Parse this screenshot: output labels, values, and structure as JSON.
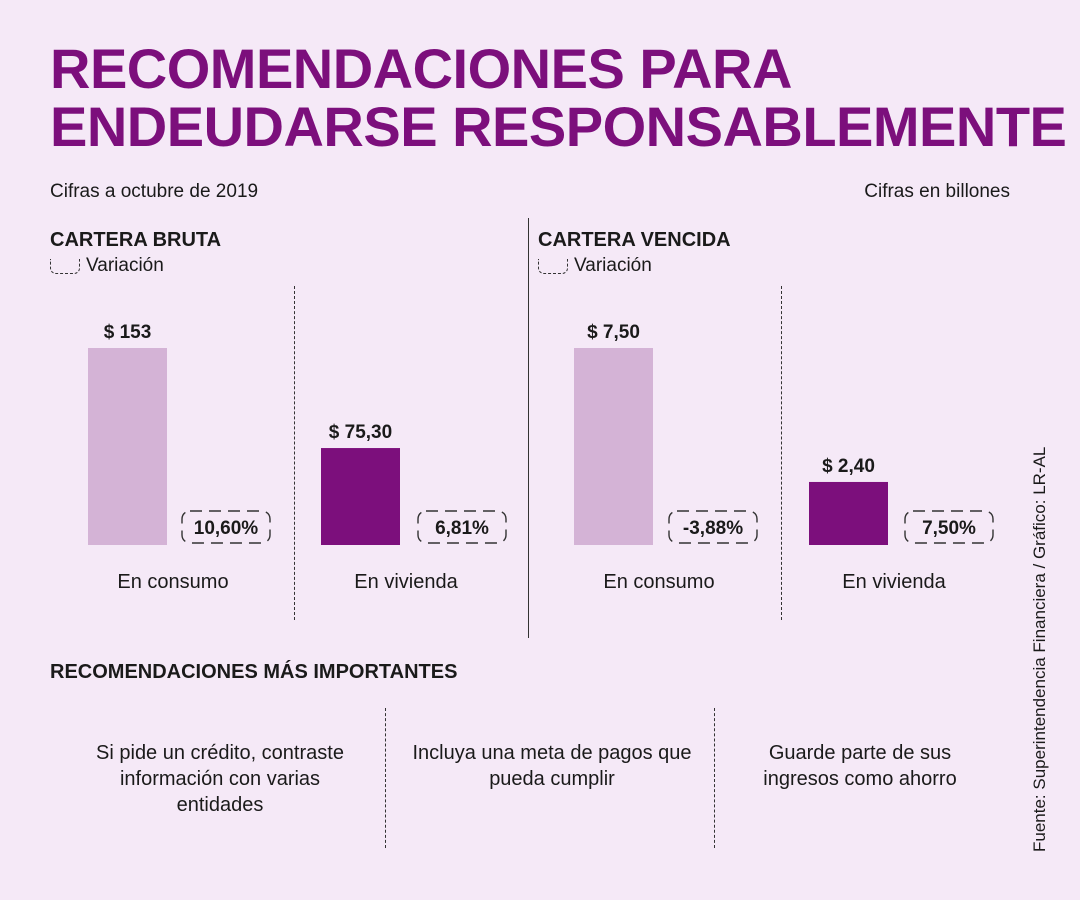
{
  "title_lines": [
    "RECOMENDACIONES PARA",
    "ENDEUDARSE RESPONSABLEMENTE"
  ],
  "date_note": "Cifras a octubre de 2019",
  "units_note": "Cifras en billones",
  "legend_label": "Variación",
  "colors": {
    "title": "#7c0f7c",
    "consumo": "#d4b3d6",
    "vivienda": "#7c0f7c",
    "background": "#f5e9f7"
  },
  "chart_data": [
    {
      "type": "bar",
      "title": "CARTERA BRUTA",
      "categories": [
        "En consumo",
        "En vivienda"
      ],
      "values": [
        153,
        75.3
      ],
      "value_labels": [
        "$ 153",
        "$ 75,30"
      ],
      "variation": [
        10.6,
        6.81
      ],
      "variation_labels": [
        "10,60%",
        "6,81%"
      ],
      "colors": [
        "#d4b3d6",
        "#7c0f7c"
      ],
      "ylim": [
        0,
        153
      ]
    },
    {
      "type": "bar",
      "title": "CARTERA VENCIDA",
      "categories": [
        "En consumo",
        "En vivienda"
      ],
      "values": [
        7.5,
        2.4
      ],
      "value_labels": [
        "$ 7,50",
        "$ 2,40"
      ],
      "variation": [
        -3.88,
        7.5
      ],
      "variation_labels": [
        "-3,88%",
        "7,50%"
      ],
      "colors": [
        "#d4b3d6",
        "#7c0f7c"
      ],
      "ylim": [
        0,
        7.5
      ]
    }
  ],
  "recommendations_title": "RECOMENDACIONES MÁS IMPORTANTES",
  "recommendations": [
    "Si pide un crédito, contraste información con varias entidades",
    "Incluya una meta de pagos que pueda cumplir",
    "Guarde parte de sus ingresos como ahorro"
  ],
  "source": "Fuente: Superintendencia Financiera / Gráfico: LR-AL"
}
